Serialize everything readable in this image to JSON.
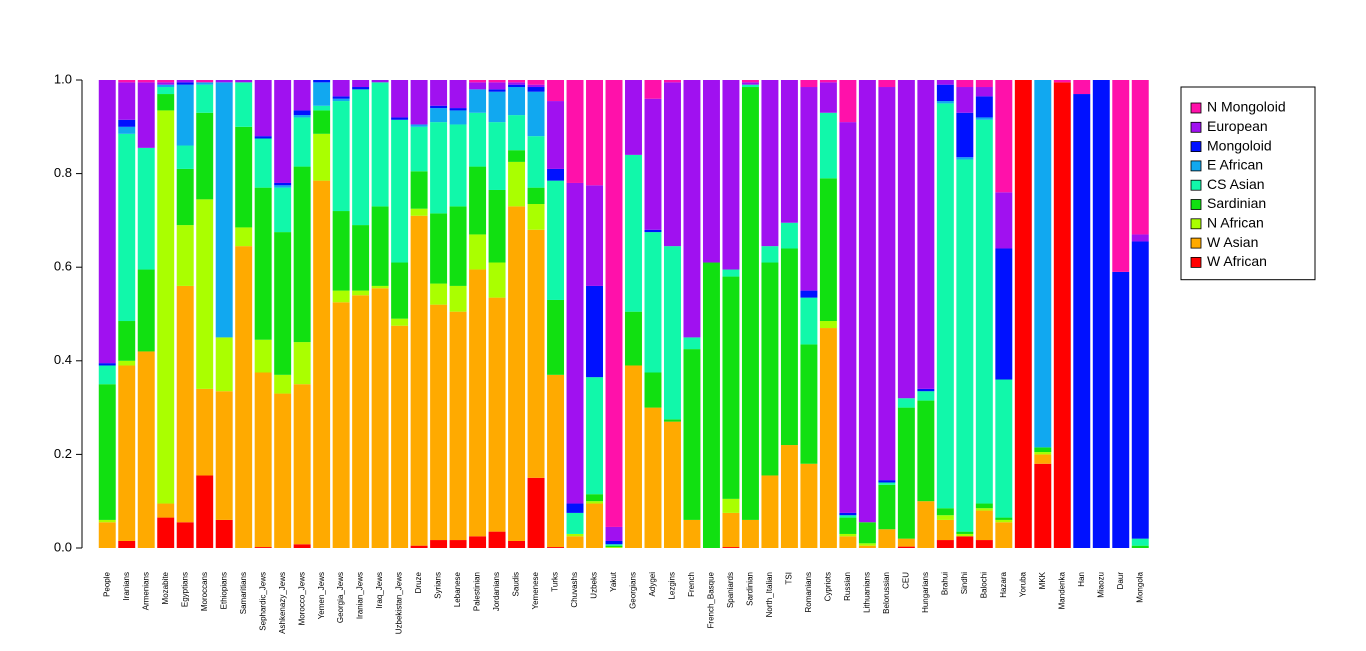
{
  "chart_data": {
    "type": "stacked_bar",
    "categories": [
      "People",
      "Iranians",
      "Armenians",
      "Mozabite",
      "Egyptians",
      "Moroccans",
      "Ethiopians",
      "Samaritians",
      "Sephardic_Jews",
      "Ashkenazy_Jews",
      "Morocco_Jews",
      "Yemen_Jews",
      "Georgia_Jews",
      "Iranian_Jews",
      "Iraq_Jews",
      "Uzbekistan_Jews",
      "Druze",
      "Syrians",
      "Lebanese",
      "Palestinian",
      "Jordanians",
      "Saudis",
      "Yemenese",
      "Turks",
      "Chuvashs",
      "Uzbeks",
      "Yakut",
      "Georgians",
      "Adygei",
      "Lezgins",
      "French",
      "French_Basque",
      "Spaniards",
      "Sardinian",
      "North_Italian",
      "TSI",
      "Romanians",
      "Cypriots",
      "Russian",
      "Lithuanians",
      "Belorussian",
      "CEU",
      "Hungarians",
      "Brahui",
      "Sindhi",
      "Balochi",
      "Hazara",
      "Yoruba",
      "MKK",
      "Mandenka",
      "Han",
      "Miaozu",
      "Daur",
      "Mongola"
    ],
    "series": [
      {
        "name": "W African",
        "color": "#ff0000",
        "values": [
          0,
          0.015,
          0,
          0.065,
          0.055,
          0.155,
          0.06,
          0,
          0.002,
          0,
          0.008,
          0,
          0,
          0,
          0,
          0,
          0.005,
          0.017,
          0.017,
          0.025,
          0.035,
          0.015,
          0.15,
          0.002,
          0,
          0,
          0,
          0,
          0,
          0,
          0,
          0,
          0.002,
          0,
          0,
          0,
          0,
          0,
          0,
          0,
          0,
          0.003,
          0,
          0.017,
          0.025,
          0.017,
          0,
          1,
          0.18,
          0.995,
          0,
          0,
          0,
          0
        ]
      },
      {
        "name": "W Asian",
        "color": "#ffaa00",
        "values": [
          0.055,
          0.375,
          0.42,
          0.03,
          0.505,
          0.185,
          0.275,
          0.645,
          0.373,
          0.33,
          0.342,
          0.785,
          0.525,
          0.54,
          0.555,
          0.475,
          0.705,
          0.503,
          0.488,
          0.57,
          0.5,
          0.715,
          0.53,
          0.368,
          0.025,
          0.095,
          0,
          0.39,
          0.3,
          0.27,
          0.06,
          0,
          0.073,
          0.06,
          0.155,
          0.22,
          0.18,
          0.47,
          0.025,
          0.005,
          0.04,
          0.017,
          0.1,
          0.043,
          0,
          0.063,
          0.055,
          0,
          0.02,
          0,
          0,
          0,
          0,
          0
        ]
      },
      {
        "name": "N African",
        "color": "#aaff00",
        "values": [
          0.005,
          0.01,
          0,
          0.84,
          0.13,
          0.405,
          0.115,
          0.04,
          0.07,
          0.04,
          0.09,
          0.1,
          0.025,
          0.01,
          0.005,
          0.015,
          0.015,
          0.045,
          0.055,
          0.075,
          0.075,
          0.095,
          0.055,
          0,
          0.005,
          0.005,
          0.002,
          0,
          0,
          0,
          0,
          0,
          0.03,
          0,
          0,
          0,
          0,
          0.015,
          0.005,
          0.005,
          0,
          0,
          0,
          0.01,
          0.005,
          0.005,
          0.005,
          0,
          0.005,
          0,
          0,
          0,
          0,
          0
        ]
      },
      {
        "name": "Sardinian",
        "color": "#11e011",
        "values": [
          0.29,
          0.085,
          0.175,
          0.035,
          0.12,
          0.185,
          0,
          0.215,
          0.325,
          0.305,
          0.375,
          0.05,
          0.17,
          0.14,
          0.17,
          0.12,
          0.08,
          0.15,
          0.17,
          0.145,
          0.155,
          0.025,
          0.035,
          0.16,
          0,
          0.015,
          0.003,
          0.115,
          0.075,
          0.005,
          0.365,
          0.61,
          0.475,
          0.925,
          0.455,
          0.42,
          0.255,
          0.305,
          0.035,
          0.045,
          0.095,
          0.28,
          0.215,
          0.015,
          0.005,
          0.01,
          0.005,
          0,
          0.01,
          0,
          0,
          0,
          0,
          0.005
        ]
      },
      {
        "name": "CS Asian",
        "color": "#11f8aa",
        "values": [
          0.04,
          0.4,
          0.26,
          0.015,
          0.05,
          0.06,
          0,
          0.095,
          0.105,
          0.095,
          0.105,
          0.01,
          0.235,
          0.29,
          0.265,
          0.305,
          0.095,
          0.195,
          0.175,
          0.115,
          0.145,
          0.075,
          0.11,
          0.255,
          0.045,
          0.25,
          0.003,
          0.335,
          0.3,
          0.37,
          0.025,
          0,
          0.015,
          0.005,
          0.035,
          0.055,
          0.1,
          0.14,
          0.005,
          0,
          0.005,
          0.02,
          0.02,
          0.865,
          0.795,
          0.82,
          0.295,
          0,
          0,
          0,
          0,
          0,
          0,
          0.015
        ]
      },
      {
        "name": "E African",
        "color": "#11a8f0",
        "values": [
          0,
          0.015,
          0,
          0.005,
          0.13,
          0.005,
          0.545,
          0,
          0,
          0.005,
          0.005,
          0.05,
          0.005,
          0,
          0,
          0,
          0.005,
          0.03,
          0.03,
          0.05,
          0.065,
          0.06,
          0.095,
          0,
          0,
          0,
          0,
          0,
          0,
          0,
          0,
          0,
          0,
          0,
          0,
          0,
          0,
          0,
          0,
          0,
          0,
          0,
          0,
          0.005,
          0.005,
          0.005,
          0,
          0,
          0.785,
          0,
          0,
          0,
          0,
          0
        ]
      },
      {
        "name": "Mongoloid",
        "color": "#0011ff",
        "values": [
          0.005,
          0.015,
          0,
          0,
          0.005,
          0,
          0,
          0,
          0.005,
          0.005,
          0.01,
          0.005,
          0.005,
          0.005,
          0,
          0.005,
          0,
          0.005,
          0.005,
          0,
          0.005,
          0.005,
          0.01,
          0.025,
          0.02,
          0.195,
          0.007,
          0,
          0.005,
          0,
          0,
          0,
          0,
          0,
          0,
          0,
          0.015,
          0,
          0.005,
          0,
          0.005,
          0,
          0.005,
          0.035,
          0.095,
          0.045,
          0.28,
          0,
          0,
          0,
          0.97,
          1,
          0.59,
          0.635
        ]
      },
      {
        "name": "European",
        "color": "#a011f0",
        "values": [
          0.605,
          0.08,
          0.14,
          0.005,
          0.005,
          0,
          0.005,
          0.005,
          0.12,
          0.22,
          0.065,
          0,
          0.035,
          0.015,
          0.005,
          0.08,
          0.095,
          0.055,
          0.06,
          0.015,
          0.015,
          0.005,
          0.005,
          0.145,
          0.685,
          0.215,
          0.03,
          0.16,
          0.28,
          0.35,
          0.55,
          0.39,
          0.405,
          0.005,
          0.355,
          0.305,
          0.435,
          0.065,
          0.835,
          0.945,
          0.84,
          0.68,
          0.66,
          0.01,
          0.055,
          0.02,
          0.12,
          0,
          0,
          0,
          0,
          0,
          0,
          0.015
        ]
      },
      {
        "name": "N Mongoloid",
        "color": "#ff11aa",
        "values": [
          0,
          0.005,
          0.005,
          0.005,
          0,
          0.005,
          0,
          0,
          0,
          0,
          0,
          0,
          0,
          0,
          0,
          0,
          0,
          0,
          0,
          0.005,
          0.005,
          0.005,
          0.01,
          0.045,
          0.22,
          0.225,
          0.955,
          0,
          0.04,
          0.005,
          0,
          0,
          0,
          0.005,
          0,
          0,
          0.015,
          0.005,
          0.09,
          0,
          0.015,
          0,
          0,
          0,
          0.015,
          0.015,
          0.24,
          0,
          0,
          0.005,
          0.03,
          0,
          0.41,
          0.33
        ]
      }
    ],
    "ylim": [
      0,
      1
    ],
    "yticks": [
      {
        "value": 0,
        "label": "0.0"
      },
      0.2,
      0.4,
      0.6,
      0.8,
      {
        "value": 1,
        "label": "1.0"
      }
    ],
    "legend": "right"
  }
}
